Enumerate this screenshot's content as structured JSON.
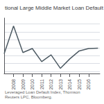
{
  "chart_data": {
    "type": "line",
    "title": "tional Large Middle Market Loan Default",
    "annotations": [
      "Leveraged Loan Default Index, Thomson Reuters LPC, Bloomberg."
    ],
    "x": [
      2007,
      2008,
      2009,
      2010,
      2011,
      2012,
      2013,
      2014,
      2015,
      2016,
      2017
    ],
    "values": [
      4.5,
      11.5,
      4.8,
      5.8,
      2.5,
      4.2,
      0.8,
      3.2,
      5.2,
      5.8,
      5.9
    ],
    "color": "#4d5a63",
    "xlim": [
      2007,
      2017.2
    ],
    "xticks": [
      2008,
      2009,
      2010,
      2011,
      2012,
      2013,
      2014,
      2015,
      2016
    ],
    "ylim": [
      -0.5,
      13.5
    ],
    "yticks": [
      0,
      2,
      4,
      6,
      8,
      10,
      12
    ],
    "grid": true,
    "tick_labels": "x"
  }
}
